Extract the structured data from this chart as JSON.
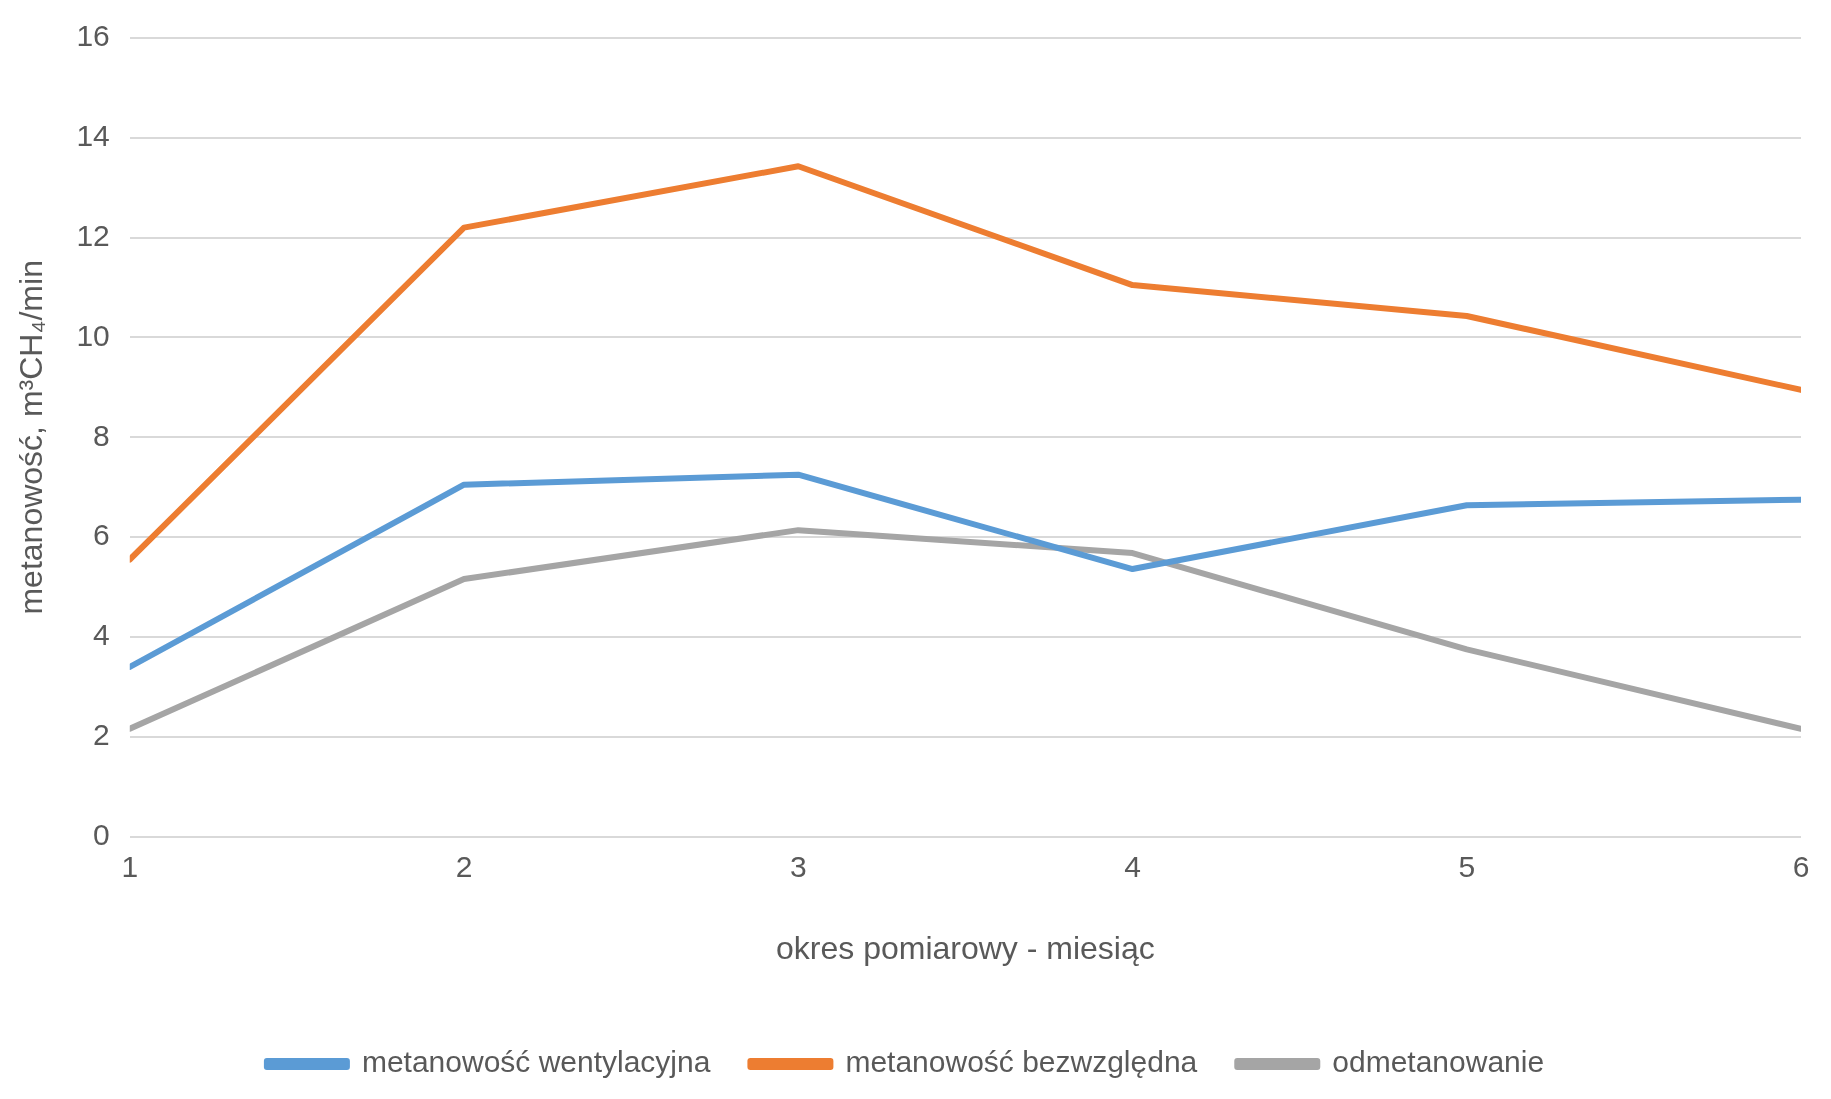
{
  "chart_data": {
    "type": "line",
    "xlabel": "okres pomiarowy - miesiąc",
    "ylabel": "metanowość, m³CH₄/min",
    "x": [
      1,
      2,
      3,
      4,
      5,
      6
    ],
    "xlim": [
      1,
      6
    ],
    "xticks": [
      1,
      2,
      3,
      4,
      5,
      6
    ],
    "ylim": [
      0,
      16
    ],
    "yticks": [
      0,
      2,
      4,
      6,
      8,
      10,
      12,
      14,
      16
    ],
    "series": [
      {
        "name": "metanowość wentylacyjna",
        "color": "#5b9bd5",
        "values": [
          3.4,
          7.05,
          7.25,
          5.36,
          6.64,
          6.75
        ]
      },
      {
        "name": "metanowość bezwzględna",
        "color": "#ed7d31",
        "values": [
          5.55,
          12.2,
          13.43,
          11.05,
          10.43,
          8.95
        ]
      },
      {
        "name": "odmetanowanie",
        "color": "#a5a5a5",
        "values": [
          2.16,
          5.16,
          6.14,
          5.68,
          3.75,
          2.16
        ]
      }
    ],
    "grid": "y",
    "legend": "bottom",
    "marker": "none",
    "line_style": "solid"
  }
}
